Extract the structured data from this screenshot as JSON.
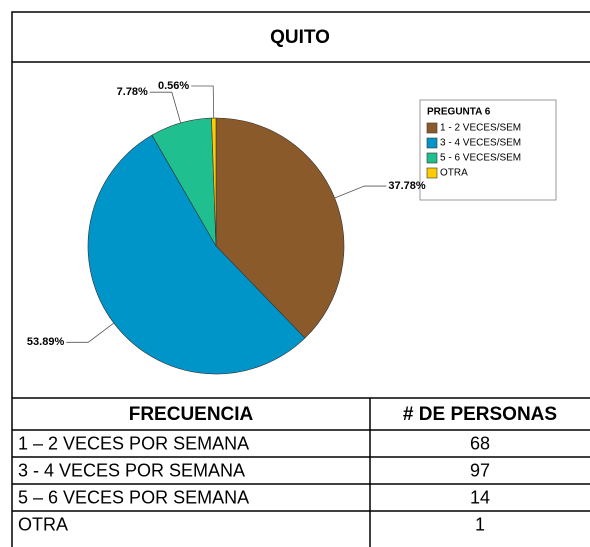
{
  "chart_data": {
    "type": "pie",
    "title": "QUITO",
    "legend_title": "PREGUNTA 6",
    "categories": [
      "1 - 2 VECES/SEM",
      "3 - 4 VECES/SEM",
      "5 - 6 VECES/SEM",
      "OTRA"
    ],
    "values": [
      37.78,
      53.89,
      7.78,
      0.56
    ],
    "value_labels": [
      "37.78%",
      "53.89%",
      "7.78%",
      "0.56%"
    ],
    "colors": [
      "#8b5a2b",
      "#0095c8",
      "#1fbf8f",
      "#ffcc00"
    ]
  },
  "table": {
    "header": [
      "FRECUENCIA",
      "# DE PERSONAS"
    ],
    "rows": [
      [
        "1 – 2 VECES POR SEMANA",
        68
      ],
      [
        "3 - 4 VECES POR SEMANA",
        97
      ],
      [
        "5 – 6 VECES POR SEMANA",
        14
      ],
      [
        "OTRA",
        1
      ]
    ]
  }
}
